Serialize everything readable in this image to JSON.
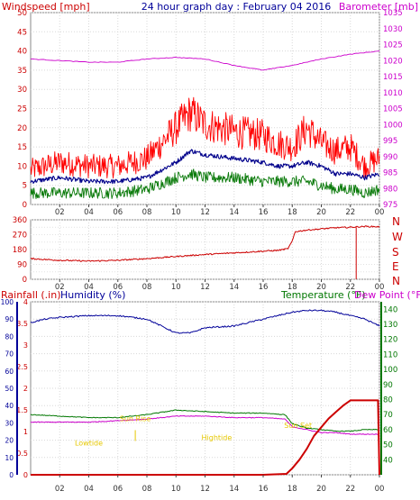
{
  "header": {
    "left_label": "Windspeed [mph]",
    "title": "24 hour graph day : February 04 2016",
    "right_label": "Barometer [mb]"
  },
  "colors": {
    "wind_avg": "#0a7a0a",
    "wind_gust": "#ff0000",
    "wind_blue": "#00008b",
    "barometer": "#cc00cc",
    "direction": "#cc0000",
    "humidity": "#000099",
    "temperature": "#007700",
    "dewpoint": "#cc00cc",
    "rainfall": "#cc0000",
    "astro": "#e6c800",
    "right_axis_dir": "#cc0000",
    "rain_axis": "#cc0000",
    "hum_axis": "#000099",
    "temp_axis": "#007700"
  },
  "x_ticks": [
    "02",
    "04",
    "06",
    "08",
    "10",
    "12",
    "14",
    "16",
    "18",
    "20",
    "22",
    "00"
  ],
  "compass_letters": [
    "N",
    "W",
    "S",
    "E",
    "N"
  ],
  "bottom_legend": {
    "rainfall": "Rainfall (.in)",
    "humidity": "Humidity (%)",
    "temperature": "Temperature (°F)",
    "dewpoint": "Dew Point (°F)"
  },
  "astro_labels": {
    "lowtide": "Lowtide",
    "sunrise": "Sun Rise",
    "hightide": "Hightide",
    "sunset": "Sun Set"
  },
  "chart_data": [
    {
      "type": "line",
      "panel": "wind-barometer",
      "x_range": [
        0,
        24
      ],
      "ylim_left": [
        0,
        50
      ],
      "left_ticks": [
        0,
        5,
        10,
        15,
        20,
        25,
        30,
        35,
        40,
        45,
        50
      ],
      "ylim_right": [
        975,
        1035
      ],
      "right_ticks": [
        975,
        980,
        985,
        990,
        995,
        1000,
        1005,
        1010,
        1015,
        1020,
        1025,
        1030,
        1035
      ],
      "series": [
        {
          "key": "gust",
          "x": [
            0,
            2,
            4,
            6,
            8,
            10,
            11,
            12,
            14,
            16,
            17,
            18,
            19,
            20,
            21,
            22,
            23,
            24
          ],
          "values": [
            9,
            11,
            10,
            10,
            12,
            20,
            24,
            21,
            19,
            18,
            16,
            15,
            20,
            16,
            14,
            15,
            10,
            12
          ]
        },
        {
          "key": "blue",
          "x": [
            0,
            2,
            4,
            6,
            8,
            10,
            11,
            12,
            14,
            16,
            17,
            18,
            19,
            20,
            21,
            22,
            23,
            24
          ],
          "values": [
            6,
            7,
            6,
            6,
            7,
            11,
            14,
            13,
            12,
            11,
            10,
            10,
            11,
            10,
            8,
            8,
            7,
            8
          ]
        },
        {
          "key": "avg",
          "x": [
            0,
            2,
            4,
            6,
            8,
            10,
            11,
            12,
            14,
            16,
            17,
            18,
            19,
            20,
            21,
            22,
            23,
            24
          ],
          "values": [
            3,
            3,
            3,
            3,
            4,
            7,
            8,
            7,
            7,
            6,
            6,
            6,
            6,
            5,
            4,
            4,
            3,
            4
          ]
        },
        {
          "key": "baro",
          "axis": "right",
          "x": [
            0,
            2,
            4,
            6,
            8,
            10,
            12,
            14,
            16,
            18,
            20,
            22,
            24
          ],
          "values": [
            1020.5,
            1020,
            1019.5,
            1019.5,
            1020.5,
            1021,
            1020.5,
            1018.5,
            1017,
            1018.5,
            1020.5,
            1022,
            1023
          ]
        }
      ]
    },
    {
      "type": "line",
      "panel": "wind-direction",
      "x_range": [
        0,
        24
      ],
      "ylim": [
        0,
        360
      ],
      "left_ticks": [
        0,
        45,
        90,
        135,
        180,
        225,
        270,
        315,
        360
      ],
      "series": [
        {
          "key": "dir",
          "x": [
            0,
            2,
            4,
            6,
            8,
            10,
            12,
            14,
            16,
            17,
            17.7,
            18,
            18.2,
            19,
            20,
            21,
            22,
            23,
            24
          ],
          "values": [
            125,
            115,
            110,
            115,
            125,
            138,
            150,
            160,
            170,
            175,
            185,
            230,
            288,
            298,
            305,
            312,
            315,
            320,
            318
          ]
        }
      ],
      "markers": [
        {
          "x": 22.4,
          "label": ""
        }
      ]
    },
    {
      "type": "line",
      "panel": "rain-humidity-temp",
      "x_range": [
        0,
        24
      ],
      "rain_lim": [
        0,
        4
      ],
      "rain_ticks": [
        0,
        0.5,
        1,
        1.5,
        2,
        2.5,
        3,
        3.5,
        4
      ],
      "hum_lim": [
        0,
        100
      ],
      "hum_ticks": [
        0,
        10,
        20,
        30,
        40,
        50,
        60,
        70,
        80,
        90,
        100
      ],
      "temp_lim": [
        30,
        145
      ],
      "temp_ticks": [
        40,
        50,
        60,
        70,
        80,
        90,
        100,
        110,
        120,
        130,
        140
      ],
      "series": [
        {
          "key": "humidity",
          "axis": "hum",
          "x": [
            0,
            1,
            2,
            4,
            6,
            8,
            9,
            10,
            11,
            12,
            14,
            16,
            18,
            19,
            20,
            21,
            22,
            23,
            24
          ],
          "values": [
            88,
            90,
            91,
            92,
            92,
            90,
            86,
            82,
            82,
            85,
            86,
            90,
            94,
            95,
            95,
            94,
            92,
            90,
            86
          ]
        },
        {
          "key": "temperature",
          "axis": "temp",
          "x": [
            0,
            2,
            4,
            6,
            8,
            10,
            12,
            14,
            16,
            17.5,
            18,
            19,
            20,
            21,
            22,
            23,
            24
          ],
          "values": [
            70,
            69,
            68,
            68,
            70,
            73,
            72,
            71,
            71,
            70,
            64,
            61,
            60,
            59,
            59,
            60,
            60
          ]
        },
        {
          "key": "dewpoint",
          "axis": "temp",
          "x": [
            0,
            2,
            4,
            6,
            8,
            10,
            12,
            14,
            16,
            17.5,
            18,
            19,
            20,
            21,
            22,
            23,
            24
          ],
          "values": [
            65,
            65,
            65,
            66,
            67,
            69,
            69,
            68,
            68,
            67,
            62,
            60,
            58,
            58,
            57,
            57,
            57
          ]
        },
        {
          "key": "rain",
          "axis": "rain",
          "x": [
            0,
            16,
            17.6,
            18,
            18.5,
            19,
            19.5,
            20,
            20.5,
            21,
            21.5,
            22,
            23,
            23.9,
            24
          ],
          "values": [
            0,
            0,
            0.02,
            0.15,
            0.35,
            0.6,
            0.9,
            1.1,
            1.3,
            1.45,
            1.6,
            1.72,
            1.72,
            1.72,
            0
          ]
        }
      ],
      "astro": [
        {
          "key": "lowtide",
          "x": 4.0,
          "y_hum": 17
        },
        {
          "key": "sunrise",
          "x": 7.2,
          "y_hum": 31
        },
        {
          "key": "hightide",
          "x": 12.8,
          "y_hum": 20
        },
        {
          "key": "sunset",
          "x": 18.4,
          "y_hum": 27
        }
      ]
    }
  ]
}
